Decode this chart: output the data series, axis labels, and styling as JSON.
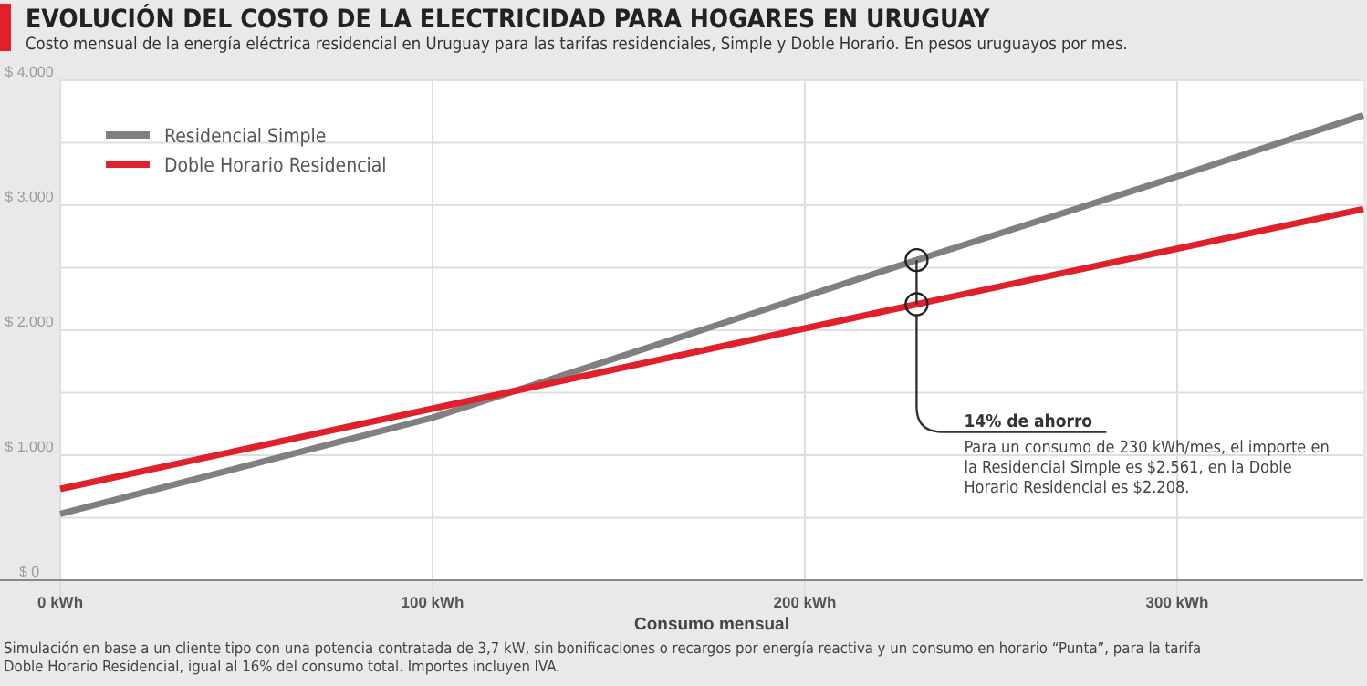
{
  "chart_data": {
    "type": "line",
    "title": "EVOLUCIÓN DEL COSTO DE LA ELECTRICIDAD PARA HOGARES EN URUGUAY",
    "subtitle": "Costo mensual de la energía eléctrica residencial en Uruguay para las tarifas residenciales, Simple y Doble Horario. En pesos uruguayos por mes.",
    "xlabel": "Consumo mensual",
    "series": [
      {
        "name": "Residencial Simple",
        "color": "#808080",
        "x": [
          0,
          100,
          230,
          300,
          350
        ],
        "values": [
          530,
          1300,
          2561,
          3230,
          3720
        ]
      },
      {
        "name": "Doble Horario Residencial",
        "color": "#e0202a",
        "x": [
          0,
          230,
          350
        ],
        "values": [
          730,
          2208,
          2970
        ]
      }
    ],
    "xlim": [
      0,
      350
    ],
    "xticks": [
      {
        "value": 0,
        "label": "0 kWh"
      },
      {
        "value": 100,
        "label": "100 kWh"
      },
      {
        "value": 200,
        "label": "200 kWh"
      },
      {
        "value": 300,
        "label": "300 kWh"
      }
    ],
    "ylim": [
      0,
      4000
    ],
    "yticks": [
      {
        "value": 0,
        "label": "$ 0"
      },
      {
        "value": 500,
        "label": null
      },
      {
        "value": 1000,
        "label": "$ 1.000"
      },
      {
        "value": 1500,
        "label": null
      },
      {
        "value": 2000,
        "label": "$ 2.000"
      },
      {
        "value": 2500,
        "label": null
      },
      {
        "value": 3000,
        "label": "$ 3.000"
      },
      {
        "value": 3500,
        "label": null
      },
      {
        "value": 4000,
        "label": "$ 4.000"
      }
    ],
    "grid": true,
    "legend": "top left",
    "annotations": [
      {
        "text": "14% de ahorro",
        "x": 230,
        "y": 2208
      },
      "Para un consumo de 230 kWh/mes, el importe en la Residencial Simple es $2.561, en la Doble Horario Residencial es $2.208.",
      "Simulación en base a un cliente tipo con una potencia contratada de 3,7 kW, sin bonificaciones o recargos por energía reactiva y un consumo en horario “Punta”, para la tarifa Doble Horario Residencial, igual al 16% del consumo total. Importes incluyen IVA."
    ]
  }
}
